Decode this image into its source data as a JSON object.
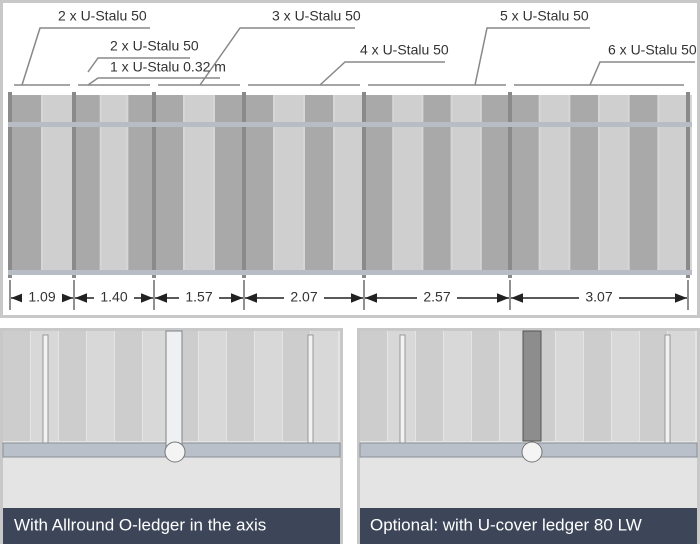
{
  "labels": [
    "2 x U-Stalu 50",
    "2 x U-Stalu 50",
    "1 x U-Stalu 0.32 m",
    "3 x U-Stalu 50",
    "4 x U-Stalu 50",
    "5 x U-Stalu 50",
    "6 x U-Stalu 50"
  ],
  "dimensions": [
    "1.09",
    "1.40",
    "1.57",
    "2.07",
    "2.57",
    "3.07"
  ],
  "captions": [
    "With Allround O-ledger in the axis",
    "Optional: with U-cover ledger 80 LW"
  ]
}
